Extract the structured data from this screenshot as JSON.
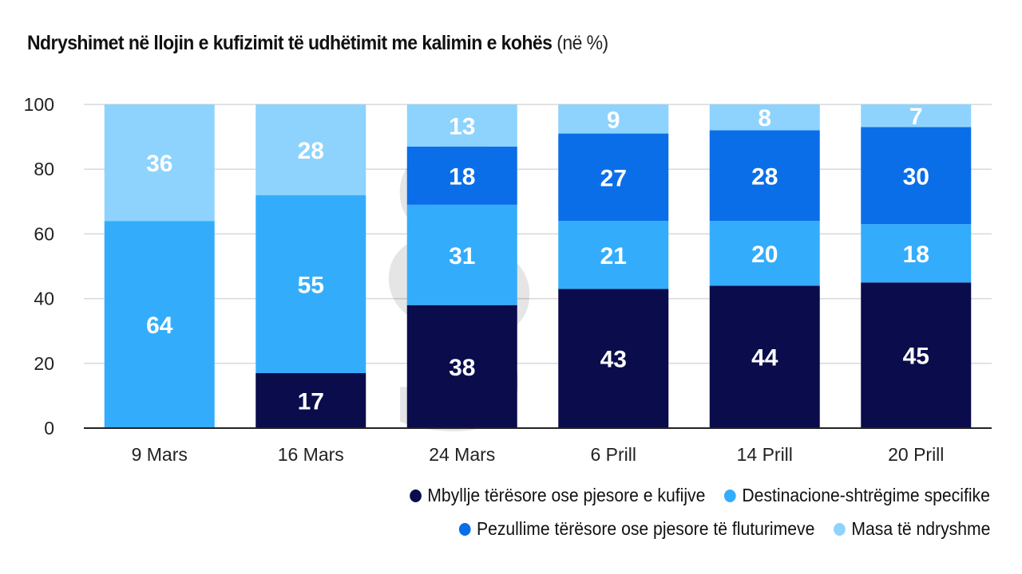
{
  "chart_data": {
    "type": "bar",
    "stacked": true,
    "title": "Ndryshimet në llojin e kufizimit të udhëtimit me kalimin e kohës",
    "title_unit": "(në %)",
    "xlabel": "",
    "ylabel": "",
    "ylim": [
      0,
      100
    ],
    "yticks": [
      0,
      20,
      40,
      60,
      80,
      100
    ],
    "grid": true,
    "legend_position": "bottom-right",
    "categories": [
      "9 Mars",
      "16 Mars",
      "24 Mars",
      "6 Prill",
      "14 Prill",
      "20 Prill"
    ],
    "series": [
      {
        "name": "Mbyllje tërësore ose pjesore e kufijve",
        "color": "#0a0c4c",
        "values": [
          0,
          17,
          38,
          43,
          44,
          45
        ]
      },
      {
        "name": "Destinacione-shtrëgime specifike",
        "color": "#33adfb",
        "values": [
          64,
          55,
          31,
          21,
          20,
          18
        ]
      },
      {
        "name": "Pezullime tërësore ose pjesore të fluturimeve",
        "color": "#0a6ee8",
        "values": [
          0,
          0,
          18,
          27,
          28,
          30
        ]
      },
      {
        "name": "Masa të ndryshme",
        "color": "#8dd3fd",
        "values": [
          36,
          28,
          13,
          9,
          8,
          7
        ]
      }
    ]
  }
}
